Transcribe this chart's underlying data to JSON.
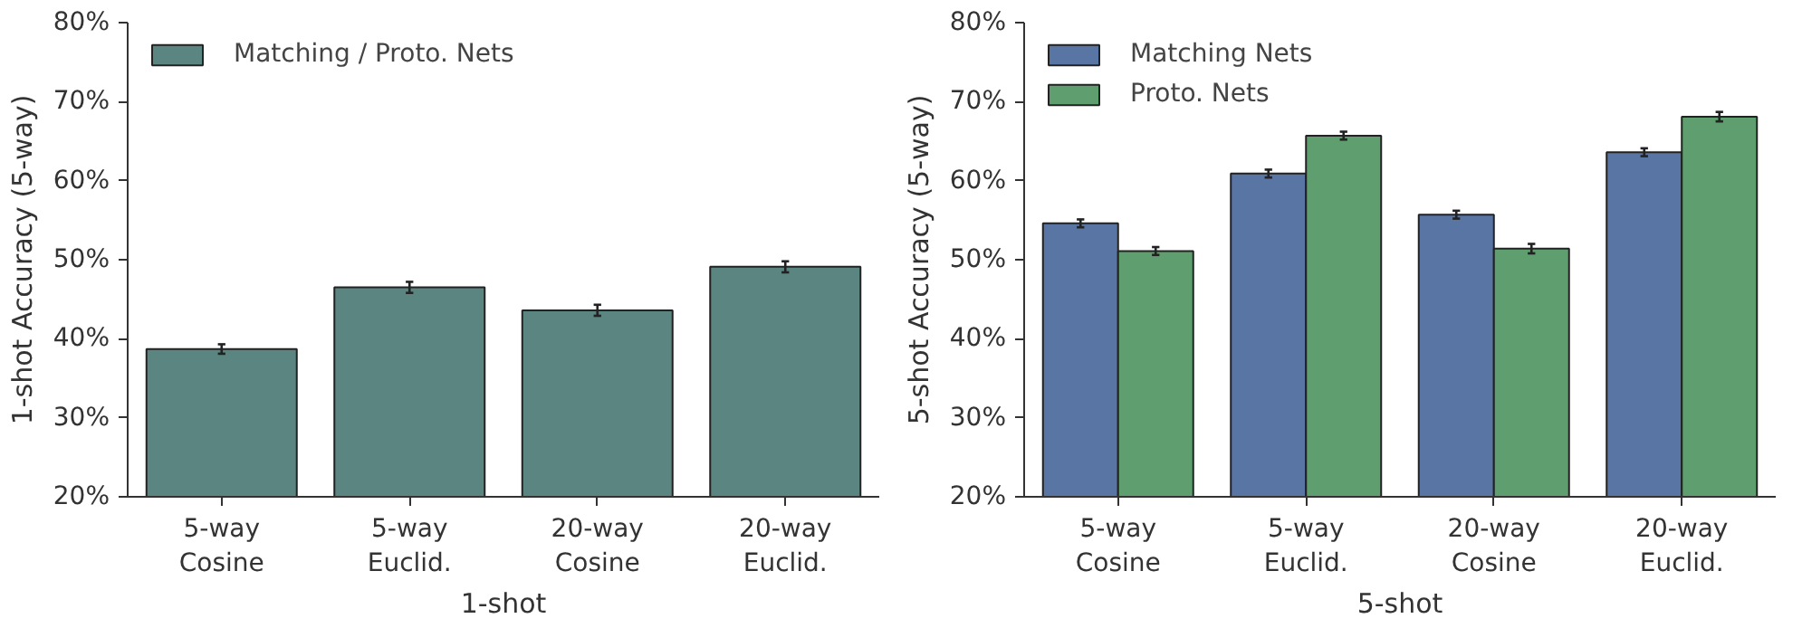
{
  "chart_data": [
    {
      "type": "bar",
      "categories": [
        "5-way\nCosine",
        "5-way\nEuclid.",
        "20-way\nCosine",
        "20-way\nEuclid."
      ],
      "xlabel": "1-shot",
      "ylabel": "1-shot Accuracy (5-way)",
      "ylim": [
        20,
        80
      ],
      "yticks": [
        {
          "value": 20,
          "label": "20%"
        },
        {
          "value": 30,
          "label": "30%"
        },
        {
          "value": 40,
          "label": "40%"
        },
        {
          "value": 50,
          "label": "50%"
        },
        {
          "value": 60,
          "label": "60%"
        },
        {
          "value": 70,
          "label": "70%"
        },
        {
          "value": 80,
          "label": "80%"
        }
      ],
      "grid": false,
      "legend": "top left",
      "series": [
        {
          "name": "Matching / Proto. Nets",
          "color": "#5a8581",
          "values": [
            38.7,
            46.5,
            43.6,
            49.1
          ],
          "errors": [
            0.6,
            0.7,
            0.7,
            0.7
          ]
        }
      ]
    },
    {
      "type": "bar",
      "categories": [
        "5-way\nCosine",
        "5-way\nEuclid.",
        "20-way\nCosine",
        "20-way\nEuclid."
      ],
      "xlabel": "5-shot",
      "ylabel": "5-shot Accuracy (5-way)",
      "ylim": [
        20,
        80
      ],
      "yticks": [
        {
          "value": 20,
          "label": "20%"
        },
        {
          "value": 30,
          "label": "30%"
        },
        {
          "value": 40,
          "label": "40%"
        },
        {
          "value": 50,
          "label": "50%"
        },
        {
          "value": 60,
          "label": "60%"
        },
        {
          "value": 70,
          "label": "70%"
        },
        {
          "value": 80,
          "label": "80%"
        }
      ],
      "grid": false,
      "legend": "top left",
      "series": [
        {
          "name": "Matching Nets",
          "color": "#5975a4",
          "values": [
            54.6,
            60.9,
            55.7,
            63.6
          ],
          "errors": [
            0.5,
            0.5,
            0.5,
            0.5
          ]
        },
        {
          "name": "Proto. Nets",
          "color": "#5f9e6e",
          "values": [
            51.1,
            65.7,
            51.4,
            68.1
          ],
          "errors": [
            0.5,
            0.5,
            0.6,
            0.6
          ]
        }
      ]
    }
  ]
}
